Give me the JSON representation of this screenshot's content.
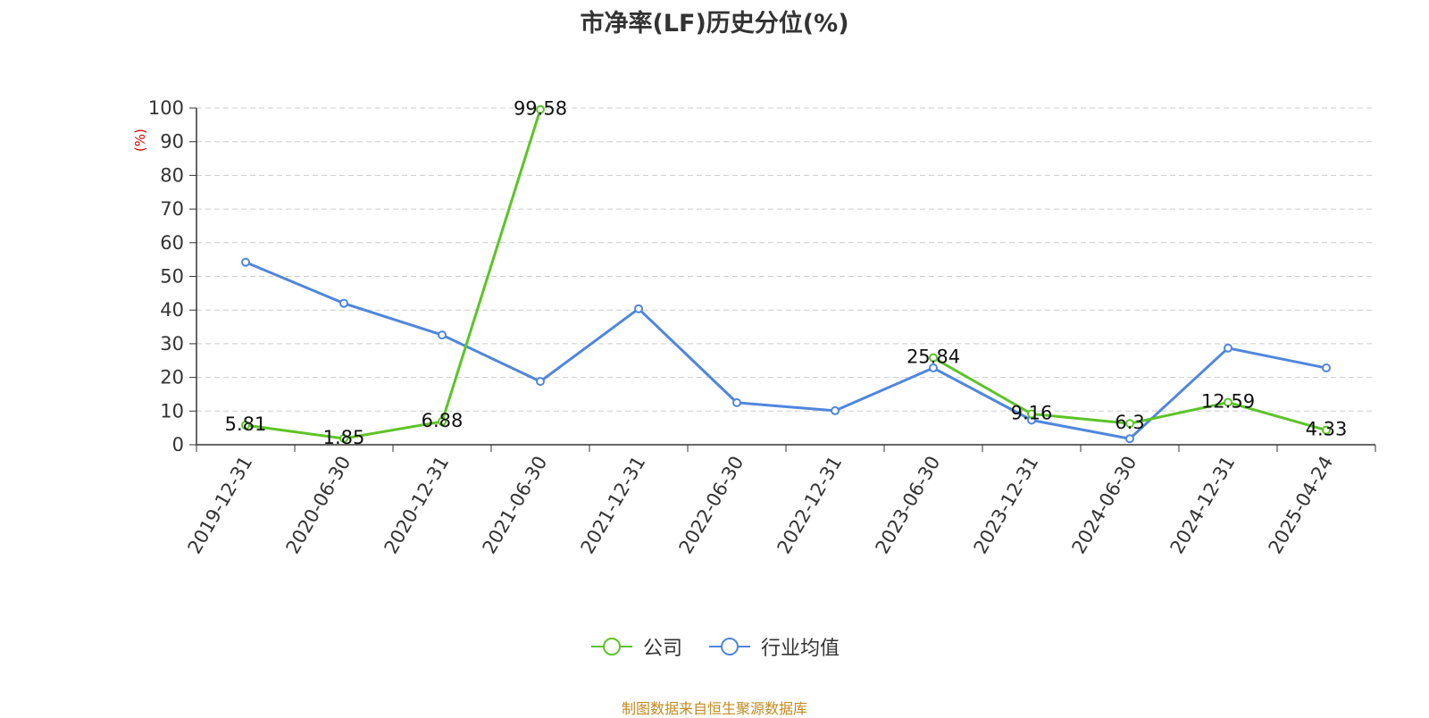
{
  "chart_data": {
    "type": "line",
    "title": "市净率(LF)历史分位(%)",
    "ylabel": "(%)",
    "ylim": [
      0,
      100
    ],
    "yticks": [
      0,
      10,
      20,
      30,
      40,
      50,
      60,
      70,
      80,
      90,
      100
    ],
    "grid": true,
    "legend_position": "bottom",
    "categories": [
      "2019-12-31",
      "2020-06-30",
      "2020-12-31",
      "2021-06-30",
      "2021-12-31",
      "2022-06-30",
      "2022-12-31",
      "2023-06-30",
      "2023-12-31",
      "2024-06-30",
      "2024-12-31",
      "2025-04-24"
    ],
    "series": [
      {
        "name": "公司",
        "color": "#5cc427",
        "values": [
          5.81,
          1.85,
          6.88,
          99.58,
          null,
          null,
          null,
          25.84,
          9.16,
          6.3,
          12.59,
          4.33
        ],
        "labels": [
          "5.81",
          "1.85",
          "6.88",
          "99.58",
          null,
          null,
          null,
          "25.84",
          "9.16",
          "6.3",
          "12.59",
          "4.33"
        ]
      },
      {
        "name": "行业均值",
        "color": "#4f86dd",
        "values": [
          54.2,
          42,
          32.6,
          18.8,
          40.4,
          12.5,
          10.1,
          22.8,
          7.3,
          1.8,
          28.7,
          22.8
        ]
      }
    ]
  },
  "footer": {
    "source": "制图数据来自恒生聚源数据库"
  }
}
